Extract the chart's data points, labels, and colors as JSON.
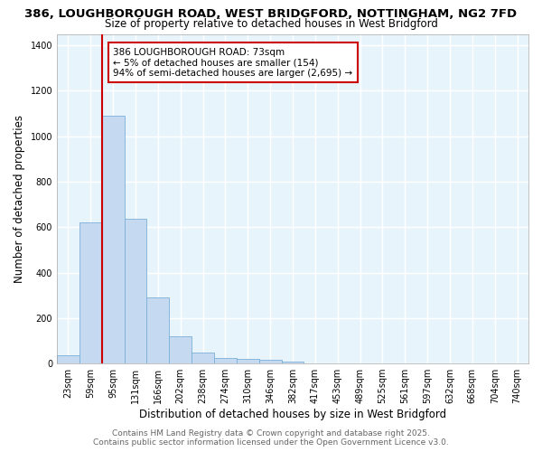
{
  "title_line1": "386, LOUGHBOROUGH ROAD, WEST BRIDGFORD, NOTTINGHAM, NG2 7FD",
  "title_line2": "Size of property relative to detached houses in West Bridgford",
  "xlabel": "Distribution of detached houses by size in West Bridgford",
  "ylabel": "Number of detached properties",
  "categories": [
    "23sqm",
    "59sqm",
    "95sqm",
    "131sqm",
    "166sqm",
    "202sqm",
    "238sqm",
    "274sqm",
    "310sqm",
    "346sqm",
    "382sqm",
    "417sqm",
    "453sqm",
    "489sqm",
    "525sqm",
    "561sqm",
    "597sqm",
    "632sqm",
    "668sqm",
    "704sqm",
    "740sqm"
  ],
  "values": [
    35,
    620,
    1090,
    635,
    290,
    120,
    50,
    25,
    20,
    18,
    8,
    0,
    0,
    0,
    0,
    0,
    0,
    0,
    0,
    0,
    0
  ],
  "bar_color": "#c5daf0",
  "bar_edgecolor": "#7ab0d8",
  "vline_x": 1.5,
  "vline_color": "#cc0000",
  "annotation_text": "386 LOUGHBOROUGH ROAD: 73sqm\n← 5% of detached houses are smaller (154)\n94% of semi-detached houses are larger (2,695) →",
  "annotation_box_color": "white",
  "annotation_box_edgecolor": "#cc0000",
  "ylim": [
    0,
    1450
  ],
  "yticks": [
    0,
    200,
    400,
    600,
    800,
    1000,
    1200,
    1400
  ],
  "background_color": "#e8f4fb",
  "grid_color": "white",
  "footer_line1": "Contains HM Land Registry data © Crown copyright and database right 2025.",
  "footer_line2": "Contains public sector information licensed under the Open Government Licence v3.0.",
  "title_fontsize": 9.5,
  "subtitle_fontsize": 8.5,
  "axis_label_fontsize": 8.5,
  "tick_fontsize": 7,
  "annotation_fontsize": 7.5,
  "footer_fontsize": 6.5,
  "figwidth": 6.0,
  "figheight": 5.0,
  "dpi": 100
}
